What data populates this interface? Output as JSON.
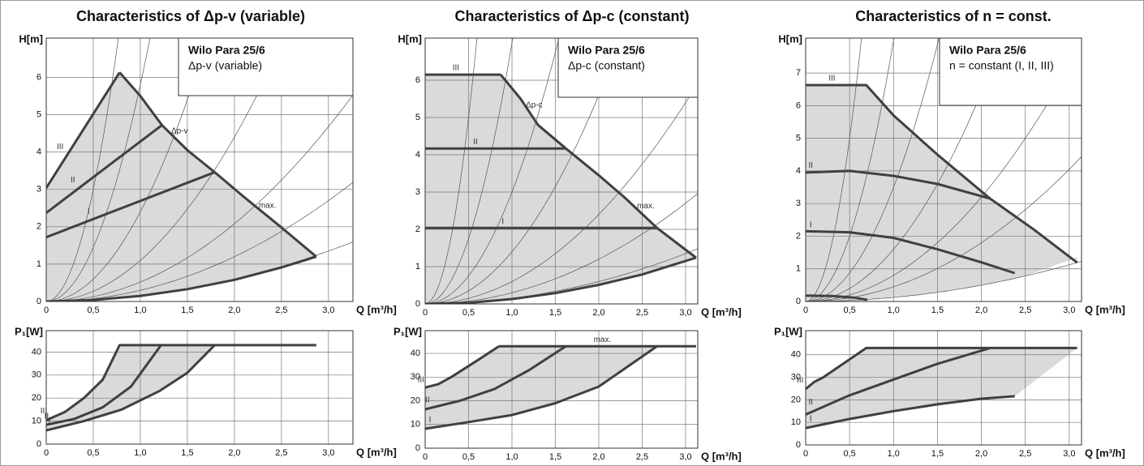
{
  "chart_data": [
    {
      "type": "line",
      "title": "Characteristics of Δp-v (variable)",
      "ylabel": "H[m]",
      "xlabel": "Q [m³/h]",
      "box_title": "Wilo Para 25/6",
      "box_text": "Δp-v (variable)",
      "xlim": [
        0,
        3.26
      ],
      "ylim": [
        0,
        7.05
      ],
      "grid": true,
      "xticks": [
        0,
        {
          "value": 0.5,
          "label": "0,5"
        },
        {
          "value": 1,
          "label": "1,0"
        },
        {
          "value": 1.5,
          "label": "1,5"
        },
        {
          "value": 2,
          "label": "2,0"
        },
        {
          "value": 2.5,
          "label": "2,5"
        },
        {
          "value": 3,
          "label": "3,0"
        }
      ],
      "yticks": [
        0,
        1,
        2,
        3,
        4,
        5,
        6
      ],
      "system_curves": {
        "color": "#555555",
        "k": [
          12,
          5.8,
          2.4,
          1.1,
          0.52,
          0.3,
          0.15
        ]
      },
      "shade": {
        "color": "#dadada",
        "x": [
          0,
          0.78,
          1.23,
          1.79,
          2.3,
          2.87,
          2.5,
          2.0,
          1.5,
          1.0,
          0.5,
          0
        ],
        "values": [
          3.04,
          6.13,
          4.72,
          3.46,
          2.4,
          1.2,
          0.91,
          0.58,
          0.33,
          0.15,
          0.04,
          0
        ]
      },
      "series": [
        {
          "name": "III",
          "color": "#404040",
          "x": [
            0,
            0.78
          ],
          "values": [
            3.04,
            6.13
          ]
        },
        {
          "name": "Δp-v",
          "color": "#404040",
          "x": [
            0.78,
            1.0,
            1.23,
            1.5,
            1.79
          ],
          "values": [
            6.13,
            5.5,
            4.72,
            4.05,
            3.46
          ]
        },
        {
          "name": "max.",
          "color": "#404040",
          "x": [
            1.79,
            2.1,
            2.5,
            2.87
          ],
          "values": [
            3.46,
            2.8,
            1.98,
            1.2
          ]
        },
        {
          "color": "#404040",
          "x": [
            0,
            0.5,
            1.0,
            1.5,
            2.0,
            2.5,
            2.87
          ],
          "values": [
            0,
            0.04,
            0.15,
            0.33,
            0.58,
            0.91,
            1.2
          ]
        },
        {
          "name": "II",
          "color": "#404040",
          "x": [
            0,
            1.23
          ],
          "values": [
            2.37,
            4.72
          ]
        },
        {
          "name": "I",
          "color": "#404040",
          "x": [
            0,
            1.79
          ],
          "values": [
            1.72,
            3.46
          ]
        }
      ]
    },
    {
      "type": "line",
      "ylabel": "P₁[W]",
      "xlabel": "Q [m³/h]",
      "xlim": [
        0,
        3.26
      ],
      "ylim": [
        0,
        49.3
      ],
      "grid": true,
      "xticks": [
        0,
        {
          "value": 0.5,
          "label": "0,5"
        },
        {
          "value": 1,
          "label": "1,0"
        },
        {
          "value": 1.5,
          "label": "1,5"
        },
        {
          "value": 2,
          "label": "2,0"
        },
        {
          "value": 2.5,
          "label": "2,5"
        },
        {
          "value": 3,
          "label": "3,0"
        }
      ],
      "yticks": [
        0,
        10,
        20,
        30,
        40
      ],
      "shade": {
        "color": "#dadada",
        "x": [
          0,
          0.2,
          0.4,
          0.6,
          0.78,
          1.79,
          1.5,
          1.2,
          0.8,
          0.4,
          0
        ],
        "values": [
          10.4,
          14,
          20,
          28,
          43,
          43,
          31,
          23,
          15,
          10,
          6
        ]
      },
      "series": [
        {
          "name": "III",
          "color": "#404040",
          "x": [
            0,
            0.2,
            0.4,
            0.6,
            0.78,
            2.87
          ],
          "values": [
            10.4,
            14,
            20,
            28,
            43,
            43
          ]
        },
        {
          "name": "II",
          "color": "#404040",
          "x": [
            0,
            0.3,
            0.6,
            0.9,
            1.22
          ],
          "values": [
            8.4,
            11,
            16,
            25,
            43
          ]
        },
        {
          "name": "I",
          "color": "#404040",
          "x": [
            0,
            0.4,
            0.8,
            1.2,
            1.5,
            1.79
          ],
          "values": [
            6,
            10,
            15,
            23,
            31,
            43
          ]
        }
      ]
    },
    {
      "type": "line",
      "title": "Characteristics of Δp-c (constant)",
      "ylabel": "H[m]",
      "xlabel": "Q [m³/h]",
      "box_title": "Wilo Para 25/6",
      "box_text": "Δp-c (constant)",
      "xlim": [
        0,
        3.14
      ],
      "ylim": [
        0,
        7.13
      ],
      "grid": true,
      "xticks": [
        0,
        {
          "value": 0.5,
          "label": "0,5"
        },
        {
          "value": 1,
          "label": "1,0"
        },
        {
          "value": 1.5,
          "label": "1,5"
        },
        {
          "value": 2,
          "label": "2,0"
        },
        {
          "value": 2.5,
          "label": "2,5"
        },
        {
          "value": 3,
          "label": "3,0"
        }
      ],
      "yticks": [
        0,
        1,
        2,
        3,
        4,
        5,
        6
      ],
      "system_curves": {
        "color": "#555555",
        "k": [
          20,
          7,
          3,
          1.4,
          0.6,
          0.3,
          0.15
        ]
      },
      "shade": {
        "color": "#dadada",
        "x": [
          0,
          0.87,
          1.1,
          1.3,
          1.62,
          2.0,
          2.3,
          2.67,
          3.12,
          2.5,
          2.0,
          1.5,
          1.0,
          0.5,
          0
        ],
        "values": [
          6.15,
          6.15,
          5.5,
          4.8,
          4.17,
          3.45,
          2.85,
          2.04,
          1.24,
          0.79,
          0.51,
          0.29,
          0.13,
          0.03,
          0
        ]
      },
      "series": [
        {
          "name": "III",
          "color": "#404040",
          "x": [
            0,
            0.87
          ],
          "values": [
            6.15,
            6.15
          ]
        },
        {
          "name": "Δp-c",
          "color": "#404040",
          "x": [
            0.87,
            1.1,
            1.3,
            1.62
          ],
          "values": [
            6.15,
            5.5,
            4.8,
            4.17
          ]
        },
        {
          "name": "max.",
          "color": "#404040",
          "x": [
            1.62,
            2.0,
            2.3,
            2.67,
            3.12
          ],
          "values": [
            4.17,
            3.45,
            2.85,
            2.04,
            1.24
          ]
        },
        {
          "color": "#404040",
          "x": [
            0,
            0.5,
            1.0,
            1.5,
            2.0,
            2.5,
            3.12
          ],
          "values": [
            0,
            0.03,
            0.13,
            0.29,
            0.51,
            0.79,
            1.24
          ]
        },
        {
          "name": "II",
          "color": "#404040",
          "x": [
            0,
            1.62
          ],
          "values": [
            4.17,
            4.17
          ]
        },
        {
          "name": "I",
          "color": "#404040",
          "x": [
            0,
            2.67
          ],
          "values": [
            2.04,
            2.04
          ]
        }
      ]
    },
    {
      "type": "line",
      "ylabel": "P₁[W]",
      "xlabel": "Q [m³/h]",
      "xlim": [
        0,
        3.14
      ],
      "ylim": [
        0,
        49.6
      ],
      "grid": true,
      "xticks": [
        0,
        {
          "value": 0.5,
          "label": "0,5"
        },
        {
          "value": 1,
          "label": "1,0"
        },
        {
          "value": 1.5,
          "label": "1,5"
        },
        {
          "value": 2,
          "label": "2,0"
        },
        {
          "value": 2.5,
          "label": "2,5"
        },
        {
          "value": 3,
          "label": "3,0"
        }
      ],
      "yticks": [
        0,
        10,
        20,
        30,
        40
      ],
      "shade": {
        "color": "#dadada",
        "x": [
          0,
          0.15,
          0.3,
          0.6,
          0.85,
          2.67,
          2.0,
          1.5,
          1.0,
          0.5,
          0
        ],
        "values": [
          25.6,
          27,
          30,
          37,
          43,
          43,
          26,
          19,
          14,
          11,
          8.2
        ]
      },
      "series": [
        {
          "name": "III",
          "color": "#404040",
          "x": [
            0,
            0.15,
            0.3,
            0.6,
            0.85
          ],
          "values": [
            25.6,
            27,
            30,
            37,
            43
          ]
        },
        {
          "name": "max.",
          "color": "#404040",
          "x": [
            0.85,
            3.12
          ],
          "values": [
            43,
            43
          ]
        },
        {
          "name": "II",
          "color": "#404040",
          "x": [
            0,
            0.4,
            0.8,
            1.2,
            1.62
          ],
          "values": [
            16.4,
            20,
            25,
            33,
            43
          ]
        },
        {
          "name": "I",
          "color": "#404040",
          "x": [
            0,
            0.5,
            1.0,
            1.5,
            2.0,
            2.67
          ],
          "values": [
            8.2,
            11,
            14,
            19,
            26,
            43
          ]
        }
      ]
    },
    {
      "type": "line",
      "title": "Characteristics of n = const.",
      "ylabel": "H[m]",
      "xlabel": "Q [m³/h]",
      "box_title": "Wilo Para 25/6",
      "box_text": "n = constant (I, II, III)",
      "xlim": [
        0,
        3.14
      ],
      "ylim": [
        0,
        8.07
      ],
      "grid": true,
      "xticks": [
        0,
        {
          "value": 0.5,
          "label": "0,5"
        },
        {
          "value": 1,
          "label": "1,0"
        },
        {
          "value": 1.5,
          "label": "1,5"
        },
        {
          "value": 2,
          "label": "2,0"
        },
        {
          "value": 2.5,
          "label": "2,5"
        },
        {
          "value": 3,
          "label": "3,0"
        }
      ],
      "yticks": [
        0,
        1,
        2,
        3,
        4,
        5,
        6,
        7
      ],
      "system_curves": {
        "color": "#555555",
        "k": [
          20,
          8,
          3.5,
          1.6,
          0.8,
          0.45,
          0.125
        ]
      },
      "shade": {
        "color": "#dadada",
        "x": [
          0,
          0.69,
          1.0,
          1.5,
          2.1,
          2.6,
          3.09,
          3.09,
          2.5,
          2.0,
          1.5,
          1.0,
          0.5,
          0
        ],
        "values": [
          6.63,
          6.63,
          5.7,
          4.5,
          3.15,
          2.2,
          1.19,
          1.35,
          0.78,
          0.5,
          0.28,
          0.12,
          0.03,
          0
        ]
      },
      "series": [
        {
          "name": "III",
          "color": "#404040",
          "x": [
            0,
            0.69,
            1.0,
            1.5,
            2.1,
            2.6,
            3.09
          ],
          "values": [
            6.63,
            6.63,
            5.7,
            4.5,
            3.15,
            2.2,
            1.19
          ]
        },
        {
          "name": "II",
          "color": "#404040",
          "x": [
            0,
            0.5,
            1.0,
            1.5,
            2.1
          ],
          "values": [
            3.95,
            4.0,
            3.85,
            3.6,
            3.15
          ]
        },
        {
          "name": "I",
          "color": "#404040",
          "x": [
            0,
            0.5,
            1.0,
            1.5,
            2.0,
            2.38
          ],
          "values": [
            2.15,
            2.12,
            1.95,
            1.6,
            1.2,
            0.87
          ]
        },
        {
          "color": "#404040",
          "x": [
            0,
            0.3,
            0.55,
            0.7
          ],
          "values": [
            0.18,
            0.17,
            0.12,
            0.05
          ]
        }
      ]
    },
    {
      "type": "line",
      "ylabel": "P₁[W]",
      "xlabel": "Q [m³/h]",
      "xlim": [
        0,
        3.14
      ],
      "ylim": [
        0,
        50.7
      ],
      "grid": true,
      "xticks": [
        0,
        {
          "value": 0.5,
          "label": "0,5"
        },
        {
          "value": 1,
          "label": "1,0"
        },
        {
          "value": 1.5,
          "label": "1,5"
        },
        {
          "value": 2,
          "label": "2,0"
        },
        {
          "value": 2.5,
          "label": "2,5"
        },
        {
          "value": 3,
          "label": "3,0"
        }
      ],
      "yticks": [
        0,
        10,
        20,
        30,
        40
      ],
      "shade": {
        "color": "#dadada",
        "x": [
          0,
          0.1,
          0.2,
          0.69,
          3.09,
          2.38,
          2.0,
          1.5,
          1.0,
          0.5,
          0
        ],
        "values": [
          24.8,
          28,
          30,
          43,
          43,
          21.6,
          20.5,
          18,
          15,
          11.5,
          7.5
        ]
      },
      "series": [
        {
          "name": "III",
          "color": "#404040",
          "x": [
            0,
            0.1,
            0.2,
            0.69,
            3.09
          ],
          "values": [
            24.8,
            28,
            30,
            43,
            43
          ]
        },
        {
          "name": "II",
          "color": "#404040",
          "x": [
            0,
            0.5,
            1.0,
            1.5,
            2.1
          ],
          "values": [
            13.5,
            22,
            29,
            36,
            43
          ]
        },
        {
          "name": "I",
          "color": "#404040",
          "x": [
            0,
            0.5,
            1.0,
            1.5,
            2.0,
            2.38
          ],
          "values": [
            7.5,
            11.5,
            15,
            18,
            20.5,
            21.6
          ]
        }
      ]
    }
  ]
}
